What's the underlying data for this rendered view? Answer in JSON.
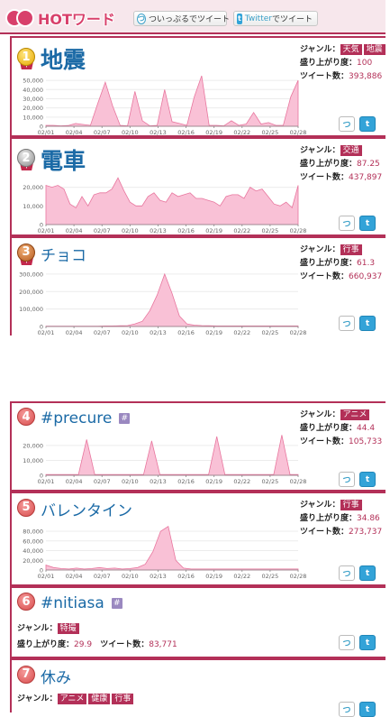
{
  "header": {
    "logo_text": "HOTワード",
    "btn1_label": "ついっぷるでツイート",
    "btn1_icon": "retweet-icon",
    "btn2_prefix": "Twitter",
    "btn2_suffix": "でツイート",
    "btn2_icon": "twitter-icon"
  },
  "labels": {
    "genre": "ジャンル：",
    "heat": "盛り上がり度：",
    "tweets": "ツイート数：",
    "hash": "#"
  },
  "x_ticks": [
    "02/01",
    "02/04",
    "02/07",
    "02/10",
    "02/13",
    "02/16",
    "02/19",
    "02/22",
    "02/25",
    "02/28"
  ],
  "colors": {
    "accent": "#b33058",
    "fill": "#f9c1d6",
    "stroke": "#e8769e",
    "link": "#1b6aa6"
  },
  "items": [
    {
      "rank": "1",
      "title": "地震",
      "genres": [
        "天気",
        "地震"
      ],
      "heat": "100",
      "tweets": "393,886",
      "chart_data": {
        "type": "area",
        "yticks": [
          "50,000",
          "40,000",
          "30,000",
          "20,000",
          "10,000",
          "0"
        ],
        "ylim": [
          0,
          55000
        ],
        "values": [
          1000,
          1000,
          500,
          800,
          3000,
          2000,
          1000,
          25000,
          48000,
          22000,
          1000,
          500,
          38000,
          6000,
          500,
          1000,
          40000,
          5000,
          3000,
          1000,
          32000,
          58000,
          1000,
          1000,
          500,
          6000,
          1000,
          2500,
          15000,
          2500,
          4000,
          1000,
          1000,
          32000,
          50000
        ]
      }
    },
    {
      "rank": "2",
      "title": "電車",
      "genres": [
        "交通"
      ],
      "heat": "87.25",
      "tweets": "437,897",
      "chart_data": {
        "type": "area",
        "yticks": [
          "20,000",
          "10,000",
          "0"
        ],
        "ylim": [
          0,
          28000
        ],
        "values": [
          21000,
          20000,
          21000,
          19000,
          11000,
          9000,
          15000,
          10000,
          16000,
          17000,
          17000,
          19000,
          25000,
          18000,
          12000,
          10000,
          10000,
          15000,
          17000,
          13000,
          12000,
          17000,
          15000,
          16000,
          17000,
          14000,
          14000,
          13000,
          12000,
          10000,
          15000,
          16000,
          16000,
          14000,
          20000,
          18000,
          19000,
          15000,
          11000,
          10000,
          12000,
          9000,
          21000
        ]
      }
    },
    {
      "rank": "3",
      "title": "チョコ",
      "genres": [
        "行事"
      ],
      "heat": "61.3",
      "tweets": "660,937",
      "chart_data": {
        "type": "area",
        "yticks": [
          "300,000",
          "200,000",
          "100,000",
          "0"
        ],
        "ylim": [
          0,
          320000
        ],
        "values": [
          2000,
          2000,
          2000,
          2000,
          2000,
          2000,
          2000,
          2000,
          3000,
          3000,
          4000,
          5000,
          15000,
          30000,
          90000,
          180000,
          300000,
          190000,
          60000,
          15000,
          8000,
          5000,
          4000,
          3000,
          3000,
          3000,
          3000,
          3000,
          3000,
          3000,
          3000,
          3000,
          3000,
          3000,
          3000
        ]
      }
    },
    {
      "rank": "4",
      "title": "#precure",
      "hash": true,
      "genres": [
        "アニメ"
      ],
      "heat": "44.4",
      "tweets": "105,733",
      "chart_data": {
        "type": "area",
        "yticks": [
          "20,000",
          "10,000",
          "0"
        ],
        "ylim": [
          0,
          29000
        ],
        "values": [
          500,
          500,
          500,
          500,
          500,
          24000,
          500,
          500,
          500,
          500,
          500,
          500,
          500,
          23000,
          500,
          500,
          500,
          500,
          500,
          500,
          500,
          26000,
          500,
          500,
          500,
          500,
          500,
          500,
          500,
          27000,
          500,
          500
        ]
      }
    },
    {
      "rank": "5",
      "title": "バレンタイン",
      "genres": [
        "行事"
      ],
      "heat": "34.86",
      "tweets": "273,737",
      "chart_data": {
        "type": "area",
        "yticks": [
          "80,000",
          "60,000",
          "40,000",
          "20,000",
          "0"
        ],
        "ylim": [
          0,
          95000
        ],
        "values": [
          10000,
          5000,
          3000,
          2000,
          4000,
          2000,
          3000,
          5000,
          3000,
          4000,
          2000,
          3000,
          5000,
          12000,
          38000,
          80000,
          90000,
          20000,
          4000,
          2000,
          2000,
          2000,
          2000,
          2000,
          2000,
          2000,
          2000,
          2000,
          2000,
          2000,
          2000,
          2000,
          2000,
          2000
        ]
      }
    },
    {
      "rank": "6",
      "title": "#nitiasa",
      "hash": true,
      "genres": [
        "特撮"
      ],
      "heat": "29.9",
      "tweets": "83,771"
    },
    {
      "rank": "7",
      "title": "休み",
      "genres": [
        "アニメ",
        "健康",
        "行事"
      ]
    }
  ]
}
